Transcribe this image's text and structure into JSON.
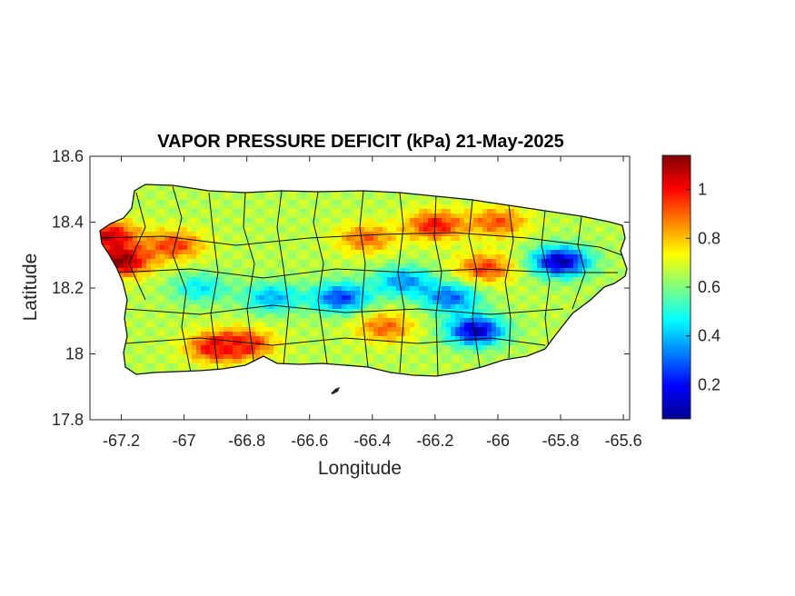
{
  "chart_data": {
    "type": "heatmap",
    "title": "VAPOR PRESSURE DEFICIT (kPa) 21-May-2025",
    "xlabel": "Longitude",
    "ylabel": "Latitude",
    "xlim": [
      -67.3,
      -65.58
    ],
    "ylim": [
      17.8,
      18.6
    ],
    "x_ticks": [
      -67.2,
      -67,
      -66.8,
      -66.6,
      -66.4,
      -66.2,
      -66,
      -65.8,
      -65.6
    ],
    "x_tick_labels": [
      "-67.2",
      "-67",
      "-66.8",
      "-66.6",
      "-66.4",
      "-66.2",
      "-66",
      "-65.8",
      "-65.6"
    ],
    "y_ticks": [
      17.8,
      18,
      18.2,
      18.4,
      18.6
    ],
    "y_tick_labels": [
      "17.8",
      "18",
      "18.2",
      "18.4",
      "18.6"
    ],
    "colorbar": {
      "colormap": "jet",
      "range": [
        0.06,
        1.14
      ],
      "ticks": [
        0.2,
        0.4,
        0.6,
        0.8,
        1.0
      ],
      "tick_labels": [
        "0.2",
        "0.4",
        "0.6",
        "0.8",
        "1"
      ]
    },
    "grid": false,
    "fields": {
      "base_value": 0.66,
      "features": [
        {
          "lon": -67.2,
          "lat": 18.28,
          "value": 1.12
        },
        {
          "lon": -67.24,
          "lat": 18.36,
          "value": 1.05
        },
        {
          "lon": -67.03,
          "lat": 18.33,
          "value": 0.95
        },
        {
          "lon": -66.9,
          "lat": 18.02,
          "value": 1.0
        },
        {
          "lon": -66.8,
          "lat": 18.03,
          "value": 0.95
        },
        {
          "lon": -66.2,
          "lat": 18.39,
          "value": 1.0
        },
        {
          "lon": -66.0,
          "lat": 18.4,
          "value": 0.92
        },
        {
          "lon": -66.42,
          "lat": 18.35,
          "value": 0.9
        },
        {
          "lon": -66.04,
          "lat": 18.26,
          "value": 0.95
        },
        {
          "lon": -65.8,
          "lat": 18.28,
          "value": 0.1
        },
        {
          "lon": -66.07,
          "lat": 18.07,
          "value": 0.12
        },
        {
          "lon": -66.5,
          "lat": 18.17,
          "value": 0.25
        },
        {
          "lon": -66.3,
          "lat": 18.22,
          "value": 0.35
        },
        {
          "lon": -66.72,
          "lat": 18.17,
          "value": 0.38
        },
        {
          "lon": -66.95,
          "lat": 18.2,
          "value": 0.45
        },
        {
          "lon": -66.15,
          "lat": 18.17,
          "value": 0.3
        },
        {
          "lon": -66.36,
          "lat": 18.08,
          "value": 0.9
        }
      ]
    }
  }
}
